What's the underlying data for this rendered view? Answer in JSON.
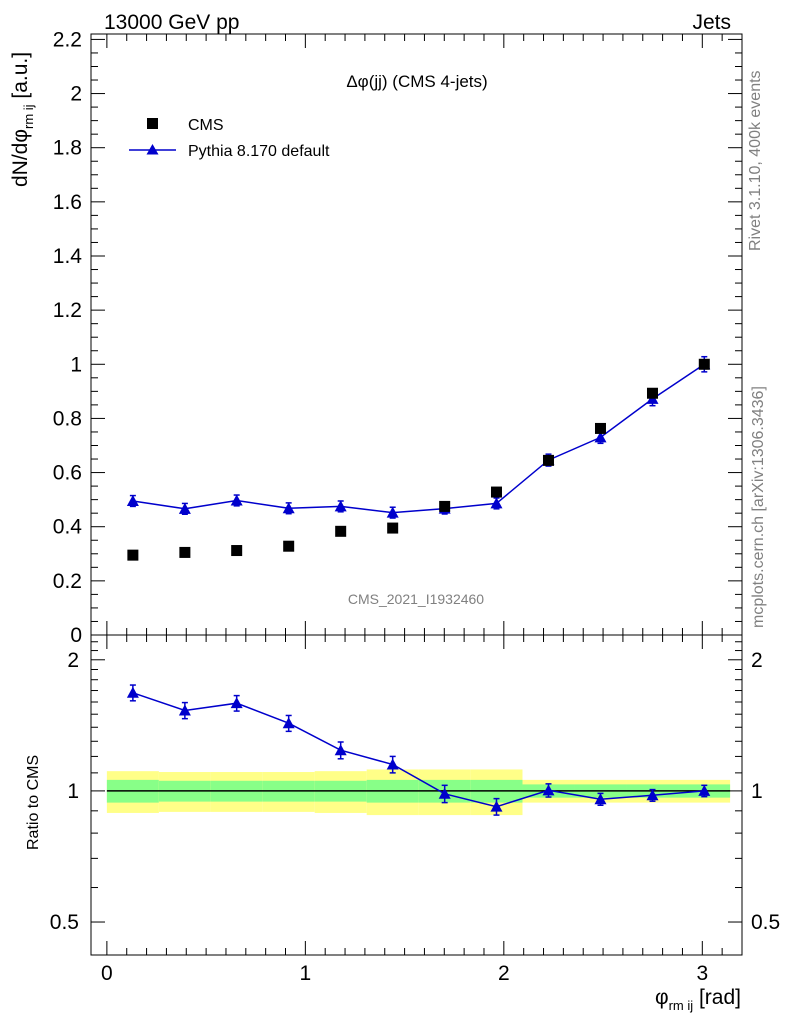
{
  "header": {
    "energy_label": "13000 GeV pp",
    "category_label": "Jets"
  },
  "side_labels": {
    "rivet": "Rivet 3.1.10,  400k events",
    "mcplots": "mcplots.cern.ch [arXiv:1306.3436]"
  },
  "colors": {
    "data": "#000000",
    "mc": "#0000cc",
    "band_inner": "#88ff88",
    "band_outer": "#ffff88"
  },
  "chart_data": [
    {
      "type": "scatter",
      "panel": "main",
      "title": "Δφ(jj) (CMS 4-jets)",
      "analysis_tag": "CMS_2021_I1932460",
      "ylabel": "dN/dφ_rm ij [a.u.]",
      "xlim": [
        -0.08,
        3.2
      ],
      "ylim": [
        0,
        2.22
      ],
      "yticks": [
        "0",
        "0.2",
        "0.4",
        "0.6",
        "0.8",
        "1",
        "1.2",
        "1.4",
        "1.6",
        "1.8",
        "2",
        "2.2"
      ],
      "legend_position": "top-left",
      "series": [
        {
          "name": "CMS",
          "marker": "square",
          "x": [
            0.131,
            0.393,
            0.654,
            0.916,
            1.178,
            1.44,
            1.702,
            1.963,
            2.225,
            2.487,
            2.749,
            3.01
          ],
          "y": [
            0.295,
            0.305,
            0.312,
            0.328,
            0.383,
            0.395,
            0.475,
            0.528,
            0.645,
            0.763,
            0.893,
            1.0
          ]
        },
        {
          "name": "Pythia 8.170 default",
          "marker": "triangle",
          "x": [
            0.131,
            0.393,
            0.654,
            0.916,
            1.178,
            1.44,
            1.702,
            1.963,
            2.225,
            2.487,
            2.749,
            3.01
          ],
          "y": [
            0.495,
            0.466,
            0.497,
            0.468,
            0.475,
            0.452,
            0.467,
            0.486,
            0.646,
            0.73,
            0.872,
            1.0
          ],
          "yerr": [
            0.02,
            0.02,
            0.02,
            0.02,
            0.02,
            0.02,
            0.02,
            0.02,
            0.022,
            0.022,
            0.025,
            0.028
          ]
        }
      ]
    },
    {
      "type": "line",
      "panel": "ratio",
      "ylabel": "Ratio to CMS",
      "xlabel": "φ_rm ij [rad]",
      "xlim": [
        -0.08,
        3.2
      ],
      "ylim": [
        0.42,
        2.28
      ],
      "yscale": "log",
      "yticks": [
        "0.5",
        "1",
        "2"
      ],
      "xticks": [
        "0",
        "1",
        "2",
        "3"
      ],
      "bin_edges": [
        0.0,
        0.262,
        0.524,
        0.785,
        1.047,
        1.309,
        1.571,
        1.833,
        2.094,
        2.356,
        2.618,
        2.88,
        3.14
      ],
      "bands": {
        "inner": [
          0.06,
          0.055,
          0.055,
          0.055,
          0.055,
          0.06,
          0.06,
          0.06,
          0.035,
          0.035,
          0.035,
          0.035
        ],
        "outer": [
          0.11,
          0.105,
          0.105,
          0.105,
          0.11,
          0.12,
          0.12,
          0.12,
          0.06,
          0.06,
          0.06,
          0.06
        ]
      },
      "series": [
        {
          "name": "Pythia 8.170 default",
          "x": [
            0.131,
            0.393,
            0.654,
            0.916,
            1.178,
            1.44,
            1.702,
            1.963,
            2.225,
            2.487,
            2.749,
            3.01
          ],
          "y": [
            1.68,
            1.53,
            1.59,
            1.43,
            1.24,
            1.15,
            0.985,
            0.92,
            1.003,
            0.957,
            0.977,
            1.0
          ],
          "yerr": [
            0.07,
            0.065,
            0.065,
            0.06,
            0.055,
            0.05,
            0.045,
            0.04,
            0.035,
            0.03,
            0.03,
            0.03
          ]
        }
      ]
    }
  ]
}
